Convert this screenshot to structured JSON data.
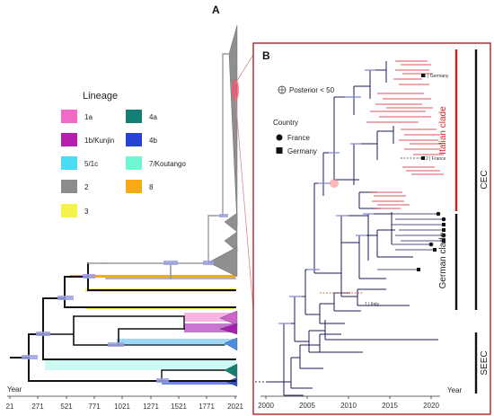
{
  "panels": {
    "a": {
      "letter": "A"
    },
    "b": {
      "letter": "B"
    }
  },
  "legend": {
    "title": "Lineage",
    "entries": [
      {
        "label": "1a",
        "color": "#f26ac8"
      },
      {
        "label": "1b/Kunjin",
        "color": "#b41fae"
      },
      {
        "label": "5/1c",
        "color": "#49dcf3"
      },
      {
        "label": "2",
        "color": "#8c8c8c"
      },
      {
        "label": "3",
        "color": "#f3f34a"
      },
      {
        "label": "4a",
        "color": "#147f74"
      },
      {
        "label": "4b",
        "color": "#2643d2"
      },
      {
        "label": "7/Koutango",
        "color": "#6ff7d3"
      },
      {
        "label": "8",
        "color": "#f7a916"
      }
    ]
  },
  "axis_a": {
    "title": "Year",
    "ticks": [
      "21",
      "271",
      "521",
      "771",
      "1021",
      "1271",
      "1521",
      "1771",
      "2021"
    ]
  },
  "axis_b": {
    "title": "Year",
    "ticks": [
      "2000",
      "2005",
      "2010",
      "2015",
      "2020"
    ]
  },
  "panel_b_legend": {
    "posterior": "Posterior < 50",
    "country_title": "Country",
    "countries": [
      "France",
      "Germany"
    ]
  },
  "clades": {
    "italian": "Italian clade",
    "german": "German clade",
    "cec": "CEC",
    "seec": "SEEC"
  },
  "annotations": {
    "germany": "1 | Germany",
    "france": "2 | France",
    "italy": "1 | Italy"
  },
  "colors": {
    "italian": "#d11f2a",
    "branch": "#1a1a5a",
    "node_bar": "#7f85d6",
    "frame": "#b22222"
  }
}
